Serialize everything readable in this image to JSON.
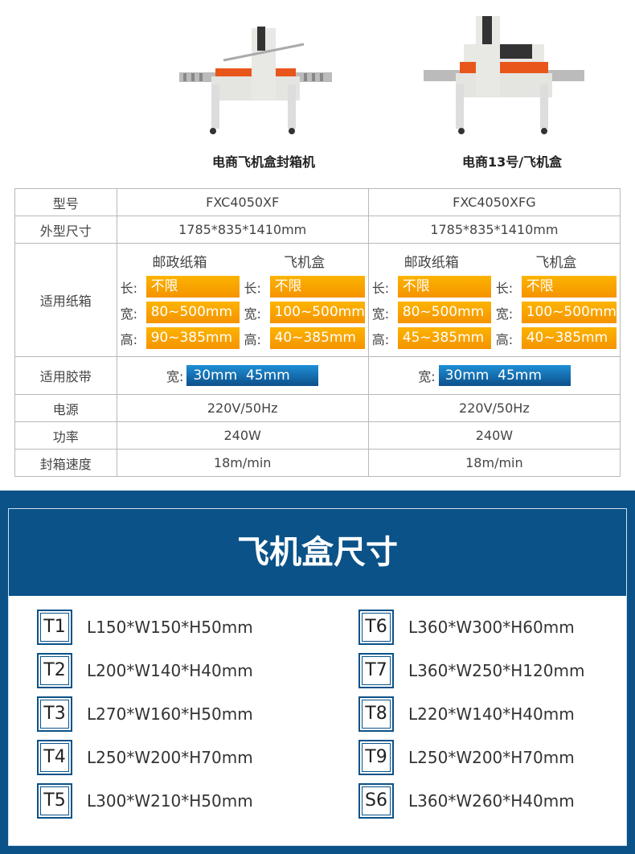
{
  "products": [
    {
      "name": "电商飞机盒封箱机"
    },
    {
      "name": "电商13号/飞机盒"
    }
  ],
  "table": {
    "rows": {
      "model": {
        "label": "型号",
        "values": [
          "FXC4050XF",
          "FXC4050XFG"
        ]
      },
      "size": {
        "label": "外型尺寸",
        "values": [
          "1785*835*1410mm",
          "1785*835*1410mm"
        ]
      },
      "carton": {
        "label": "适用纸箱",
        "cols": [
          {
            "postal": {
              "title": "邮政纸箱",
              "length": "不限",
              "width": "80~500mm",
              "height": "90~385mm"
            },
            "mailer": {
              "title": "飞机盒",
              "length": "不限",
              "width": "100~500mm",
              "height": "40~385mm"
            }
          },
          {
            "postal": {
              "title": "邮政纸箱",
              "length": "不限",
              "width": "80~500mm",
              "height": "45~385mm"
            },
            "mailer": {
              "title": "飞机盒",
              "length": "不限",
              "width": "100~500mm",
              "height": "40~385mm"
            }
          }
        ],
        "keys": {
          "length": "长:",
          "width": "宽:",
          "height": "高:"
        }
      },
      "tape": {
        "label": "适用胶带",
        "key": "宽:",
        "values": [
          "30mm  45mm",
          "30mm  45mm"
        ]
      },
      "power_supply": {
        "label": "电源",
        "values": [
          "220V/50Hz",
          "220V/50Hz"
        ]
      },
      "power": {
        "label": "功率",
        "values": [
          "240W",
          "240W"
        ]
      },
      "speed": {
        "label": "封箱速度",
        "values": [
          "18m/min",
          "18m/min"
        ]
      }
    }
  },
  "sizes": {
    "title": "飞机盒尺寸",
    "items": [
      {
        "code": "T1",
        "dim": "L150*W150*H50mm"
      },
      {
        "code": "T2",
        "dim": "L200*W140*H40mm"
      },
      {
        "code": "T3",
        "dim": "L270*W160*H50mm"
      },
      {
        "code": "T4",
        "dim": "L250*W200*H70mm"
      },
      {
        "code": "T5",
        "dim": "L300*W210*H50mm"
      },
      {
        "code": "T6",
        "dim": "L360*W300*H60mm"
      },
      {
        "code": "T7",
        "dim": "L360*W250*H120mm"
      },
      {
        "code": "T8",
        "dim": "L220*W140*H40mm"
      },
      {
        "code": "T9",
        "dim": "L250*W200*H70mm"
      },
      {
        "code": "S6",
        "dim": "L360*W260*H40mm"
      }
    ]
  },
  "colors": {
    "brand_blue": "#0a5288",
    "orange": "#f59300"
  }
}
